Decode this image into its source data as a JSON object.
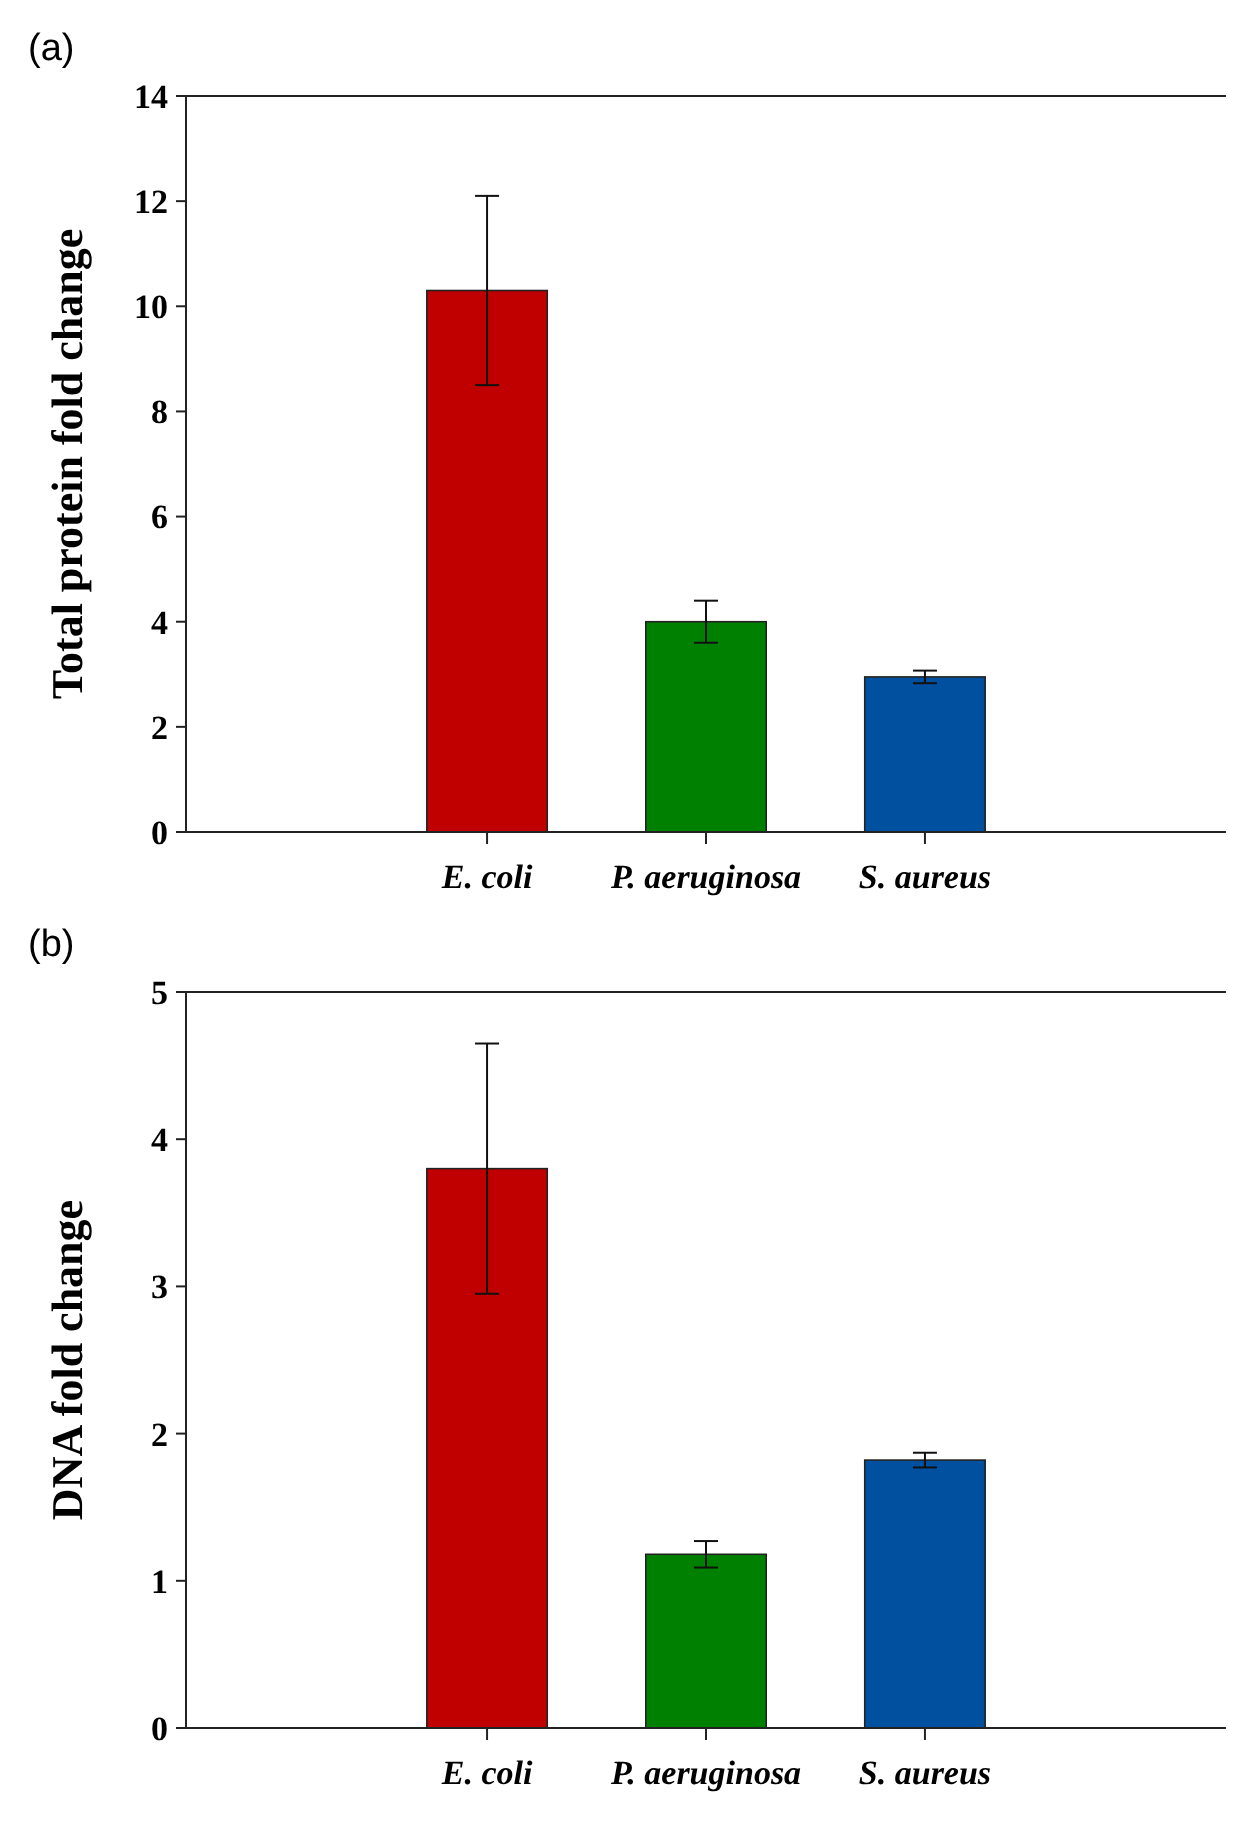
{
  "chart_data": [
    {
      "type": "bar",
      "title": "(a)",
      "ylabel": "Total protein fold change",
      "categories": [
        "E. coli",
        "P. aeruginosa",
        "S. aureus"
      ],
      "colors": [
        "#c00000",
        "#008000",
        "#0050a0"
      ],
      "values": [
        10.3,
        4.0,
        2.95
      ],
      "errors": [
        1.8,
        0.4,
        0.12
      ],
      "ylim": [
        0,
        14
      ],
      "yticks": [
        0,
        2,
        4,
        6,
        8,
        10,
        12,
        14
      ],
      "grid": false
    },
    {
      "type": "bar",
      "title": "(b)",
      "ylabel": "DNA fold change",
      "categories": [
        "E. coli",
        "P. aeruginosa",
        "S. aureus"
      ],
      "colors": [
        "#c00000",
        "#008000",
        "#0050a0"
      ],
      "values": [
        3.8,
        1.18,
        1.82
      ],
      "errors": [
        0.85,
        0.09,
        0.05
      ],
      "ylim": [
        0,
        5
      ],
      "yticks": [
        0,
        1,
        2,
        3,
        4,
        5
      ],
      "grid": false
    }
  ]
}
